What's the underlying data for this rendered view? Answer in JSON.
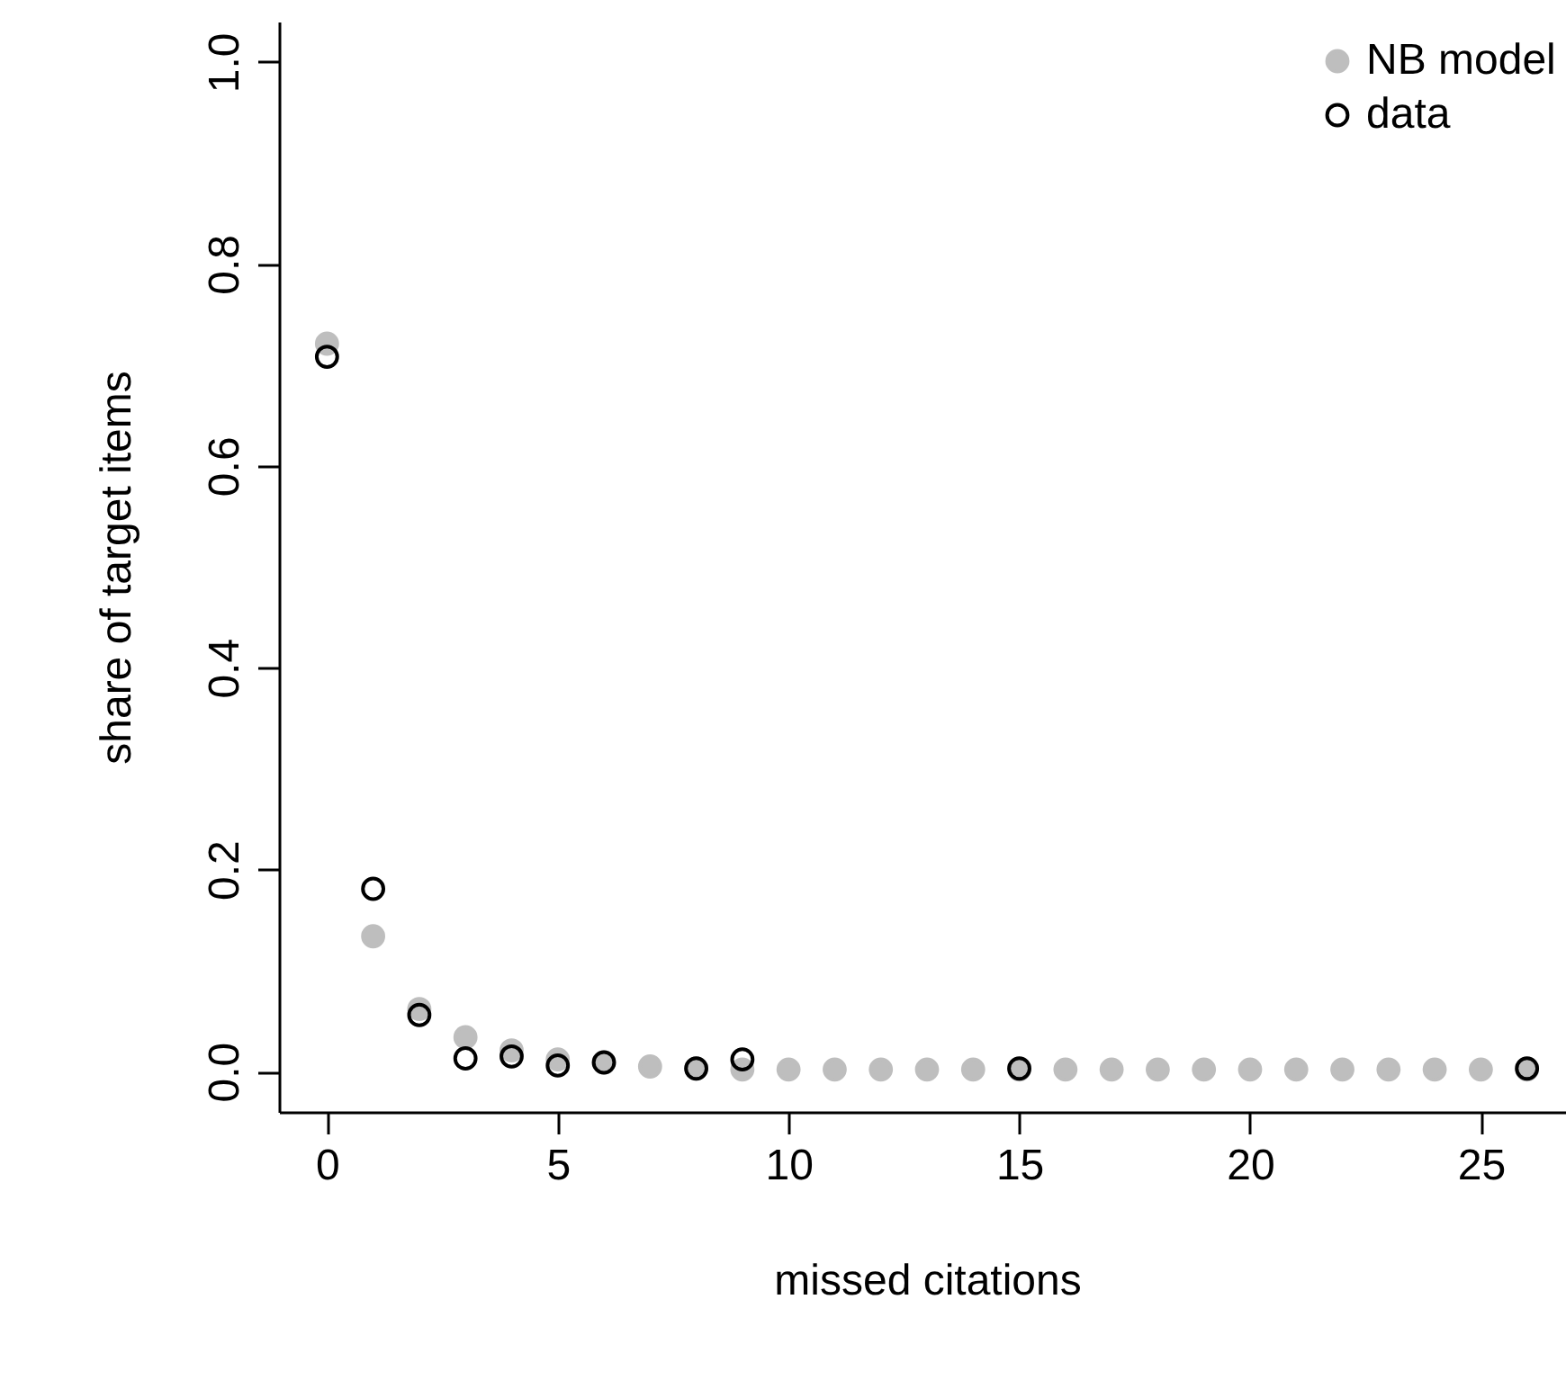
{
  "chart_data": {
    "type": "scatter",
    "xlabel": "missed citations",
    "ylabel": "share of target items",
    "xlim": [
      -1.04,
      27.04
    ],
    "ylim": [
      -0.04,
      1.04
    ],
    "xticks": [
      0,
      5,
      10,
      15,
      20,
      25
    ],
    "yticks": [
      {
        "value": 0,
        "label": "0.0"
      },
      {
        "value": 0.2,
        "label": "0.2"
      },
      {
        "value": 0.4,
        "label": "0.4"
      },
      {
        "value": 0.6,
        "label": "0.6"
      },
      {
        "value": 0.8,
        "label": "0.8"
      },
      {
        "value": 1,
        "label": "1.0"
      }
    ],
    "grid": false,
    "legend": "top right",
    "marker": "circle",
    "series": [
      {
        "name": "NB model",
        "color": "#bebebe",
        "x": [
          0,
          1,
          2,
          3,
          4,
          5,
          6,
          7,
          8,
          9,
          10,
          11,
          12,
          13,
          14,
          15,
          16,
          17,
          18,
          19,
          20,
          21,
          22,
          23,
          24,
          25,
          26
        ],
        "values": [
          0.721,
          0.134,
          0.062,
          0.034,
          0.021,
          0.012,
          0.009,
          0.005,
          0.003,
          0.002,
          0.002,
          0.002,
          0.002,
          0.002,
          0.002,
          0.002,
          0.002,
          0.002,
          0.002,
          0.002,
          0.002,
          0.002,
          0.002,
          0.002,
          0.002,
          0.002,
          0.002
        ]
      },
      {
        "name": "data",
        "color": "#000000",
        "x": [
          0,
          1,
          2,
          3,
          4,
          5,
          6,
          8,
          9,
          15,
          26
        ],
        "values": [
          0.708,
          0.181,
          0.056,
          0.013,
          0.015,
          0.006,
          0.009,
          0.003,
          0.012,
          0.003,
          0.003
        ]
      }
    ]
  }
}
